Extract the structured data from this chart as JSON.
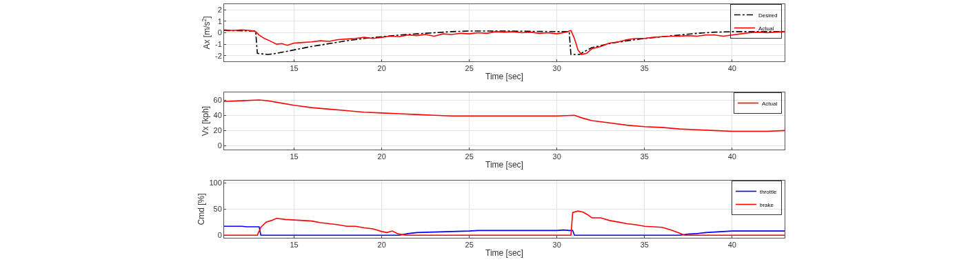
{
  "chart_data": [
    {
      "type": "line",
      "xlabel": "Time [sec]",
      "ylabel": "Ax [m/s$^{2}$]",
      "xlim": [
        11,
        43
      ],
      "xticks": [
        15,
        20,
        25,
        30,
        35,
        40
      ],
      "ylim": [
        -2.5,
        2.5
      ],
      "yticks": [
        -2,
        -1,
        0,
        1,
        2
      ],
      "grid": true,
      "legend": "top right",
      "series": [
        {
          "name": "Desired",
          "color": "#000000",
          "line_style": "dashdot",
          "x": [
            11,
            12.8,
            12.9,
            13.5,
            14,
            15,
            16,
            17,
            18,
            19,
            20,
            21,
            22,
            23,
            24,
            25,
            27,
            30,
            30.7,
            30.8,
            31.3,
            31.5,
            32,
            33,
            34,
            35,
            36,
            37,
            38,
            39,
            40,
            41,
            43
          ],
          "values": [
            0.2,
            0.15,
            -1.8,
            -1.9,
            -1.8,
            -1.5,
            -1.2,
            -0.95,
            -0.7,
            -0.5,
            -0.35,
            -0.2,
            -0.1,
            0,
            0.1,
            0.15,
            0.15,
            0.1,
            0.1,
            -1.9,
            -1.9,
            -1.7,
            -1.3,
            -0.95,
            -0.7,
            -0.5,
            -0.35,
            -0.2,
            -0.05,
            0.05,
            0.1,
            0.1,
            0.1
          ]
        },
        {
          "name": "Actual",
          "color": "#ff0000",
          "line_style": "solid",
          "x": [
            11,
            11.5,
            12,
            12.5,
            12.8,
            13,
            13.3,
            13.6,
            14,
            14.3,
            14.6,
            15,
            15.5,
            16,
            16.5,
            17,
            17.5,
            18,
            18.5,
            19,
            19.5,
            20,
            20.5,
            21,
            21.5,
            22,
            22.5,
            23,
            23.5,
            24,
            24.5,
            25,
            25.5,
            26,
            26.5,
            27,
            27.5,
            28,
            28.5,
            29,
            29.5,
            30,
            30.5,
            30.8,
            31,
            31.2,
            31.4,
            31.7,
            32,
            32.5,
            33,
            33.5,
            34,
            34.5,
            35,
            35.5,
            36,
            36.5,
            37,
            37.5,
            38,
            38.5,
            39,
            39.5,
            40,
            40.5,
            41,
            41.5,
            42,
            42.5,
            43
          ],
          "values": [
            0.25,
            0.2,
            0.25,
            0.2,
            0.1,
            -0.2,
            -0.5,
            -0.7,
            -1,
            -0.95,
            -1.1,
            -0.9,
            -0.85,
            -0.8,
            -0.7,
            -0.75,
            -0.6,
            -0.55,
            -0.5,
            -0.4,
            -0.5,
            -0.4,
            -0.3,
            -0.35,
            -0.2,
            -0.25,
            -0.15,
            -0.3,
            -0.1,
            -0.15,
            -0.05,
            -0.1,
            0,
            -0.05,
            0.1,
            0.05,
            0.1,
            0,
            0.05,
            -0.05,
            0,
            -0.1,
            0.05,
            0.2,
            -0.5,
            -1.5,
            -1.9,
            -1.8,
            -1.4,
            -1.2,
            -0.9,
            -0.8,
            -0.6,
            -0.5,
            -0.5,
            -0.4,
            -0.35,
            -0.3,
            -0.3,
            -0.25,
            -0.3,
            -0.2,
            -0.2,
            -0.3,
            -0.2,
            -0.1,
            0,
            0.05,
            0,
            0.05,
            0.1
          ]
        }
      ]
    },
    {
      "type": "line",
      "xlabel": "Time [sec]",
      "ylabel": "Vx [kph]",
      "xlim": [
        11,
        43
      ],
      "xticks": [
        15,
        20,
        25,
        30,
        35,
        40
      ],
      "ylim": [
        -5,
        70
      ],
      "yticks": [
        0,
        20,
        40,
        60
      ],
      "grid": true,
      "legend": "top right",
      "series": [
        {
          "name": "Actual",
          "color": "#ff0000",
          "line_style": "solid",
          "x": [
            11,
            12,
            13,
            13.5,
            14,
            15,
            16,
            17,
            18,
            19,
            20,
            21,
            22,
            23,
            24,
            25,
            26,
            27,
            28,
            29,
            30,
            31,
            31.5,
            32,
            33,
            34,
            35,
            36,
            37,
            38,
            39,
            40,
            41,
            42,
            43
          ],
          "values": [
            58,
            59,
            60,
            59,
            57,
            53,
            50,
            48,
            46,
            44,
            43,
            42,
            41,
            40,
            39,
            39,
            39,
            39,
            39,
            39,
            39,
            40,
            36,
            33,
            30,
            27,
            25,
            24,
            22,
            21,
            20,
            19,
            19,
            19,
            20
          ]
        }
      ]
    },
    {
      "type": "line",
      "xlabel": "Time [sec]",
      "ylabel": "Cmd [%]",
      "xlim": [
        11,
        43
      ],
      "xticks": [
        15,
        20,
        25,
        30,
        35,
        40
      ],
      "ylim": [
        -5,
        104
      ],
      "yticks": [
        0,
        50,
        100
      ],
      "grid": true,
      "legend": "top right",
      "series": [
        {
          "name": "throttle",
          "color": "#0000ff",
          "line_style": "solid",
          "x": [
            11,
            12,
            12.3,
            12.5,
            13,
            13.1,
            21,
            21.5,
            22,
            23,
            24,
            25,
            25.5,
            30,
            30.4,
            30.7,
            30.9,
            31,
            37,
            37.5,
            38,
            38.5,
            39,
            39.5,
            40,
            43
          ],
          "values": [
            17,
            17,
            16,
            16,
            16,
            0,
            0,
            3,
            5,
            6,
            7,
            8,
            9,
            9,
            10,
            9,
            9,
            0,
            0,
            2,
            3,
            5,
            6,
            7,
            8,
            8
          ]
        },
        {
          "name": "brake",
          "color": "#ff0000",
          "line_style": "solid",
          "x": [
            11,
            12.9,
            13.1,
            13.4,
            13.7,
            14,
            14.5,
            15,
            15.5,
            16,
            16.5,
            17,
            17.5,
            18,
            18.5,
            19,
            19.5,
            20,
            20.3,
            20.6,
            20.9,
            21.2,
            21.4,
            30.8,
            30.9,
            31.2,
            31.5,
            31.8,
            32,
            32.5,
            33,
            33.5,
            34,
            34.5,
            35,
            35.5,
            36,
            36.5,
            37,
            37.3,
            43
          ],
          "values": [
            0,
            0,
            15,
            25,
            28,
            32,
            30,
            29,
            28,
            27,
            24,
            22,
            20,
            17,
            17,
            14,
            12,
            7,
            5,
            8,
            3,
            1,
            0,
            0,
            43,
            46,
            44,
            38,
            33,
            33,
            28,
            25,
            22,
            20,
            17,
            16,
            15,
            10,
            4,
            0,
            0
          ]
        }
      ]
    }
  ]
}
